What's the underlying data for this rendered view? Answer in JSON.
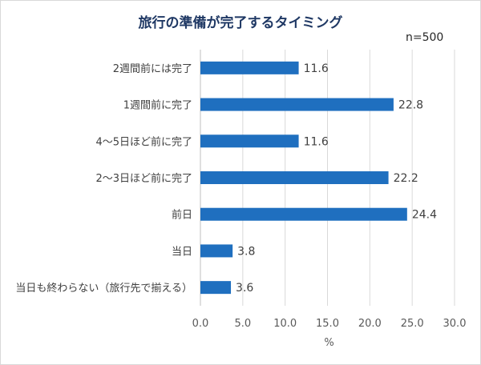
{
  "chart_data": {
    "type": "bar",
    "orientation": "horizontal",
    "title": "旅行の準備が完了するタイミング",
    "sample_note": "n=500",
    "categories": [
      "2週間前には完了",
      "1週間前に完了",
      "4～5日ほど前に完了",
      "2～3日ほど前に完了",
      "前日",
      "当日",
      "当日も終わらない（旅行先で揃える）"
    ],
    "values": [
      11.6,
      22.8,
      11.6,
      22.2,
      24.4,
      3.8,
      3.6
    ],
    "value_labels": [
      "11.6",
      "22.8",
      "11.6",
      "22.2",
      "24.4",
      "3.8",
      "3.6"
    ],
    "x_ticks": [
      "0.0",
      "5.0",
      "10.0",
      "15.0",
      "20.0",
      "25.0",
      "30.0"
    ],
    "xlim": [
      0,
      30
    ],
    "xlabel": "%",
    "grid": true,
    "bar_color": "#1f6fbf",
    "gridline_color": "#d9d9d9"
  }
}
